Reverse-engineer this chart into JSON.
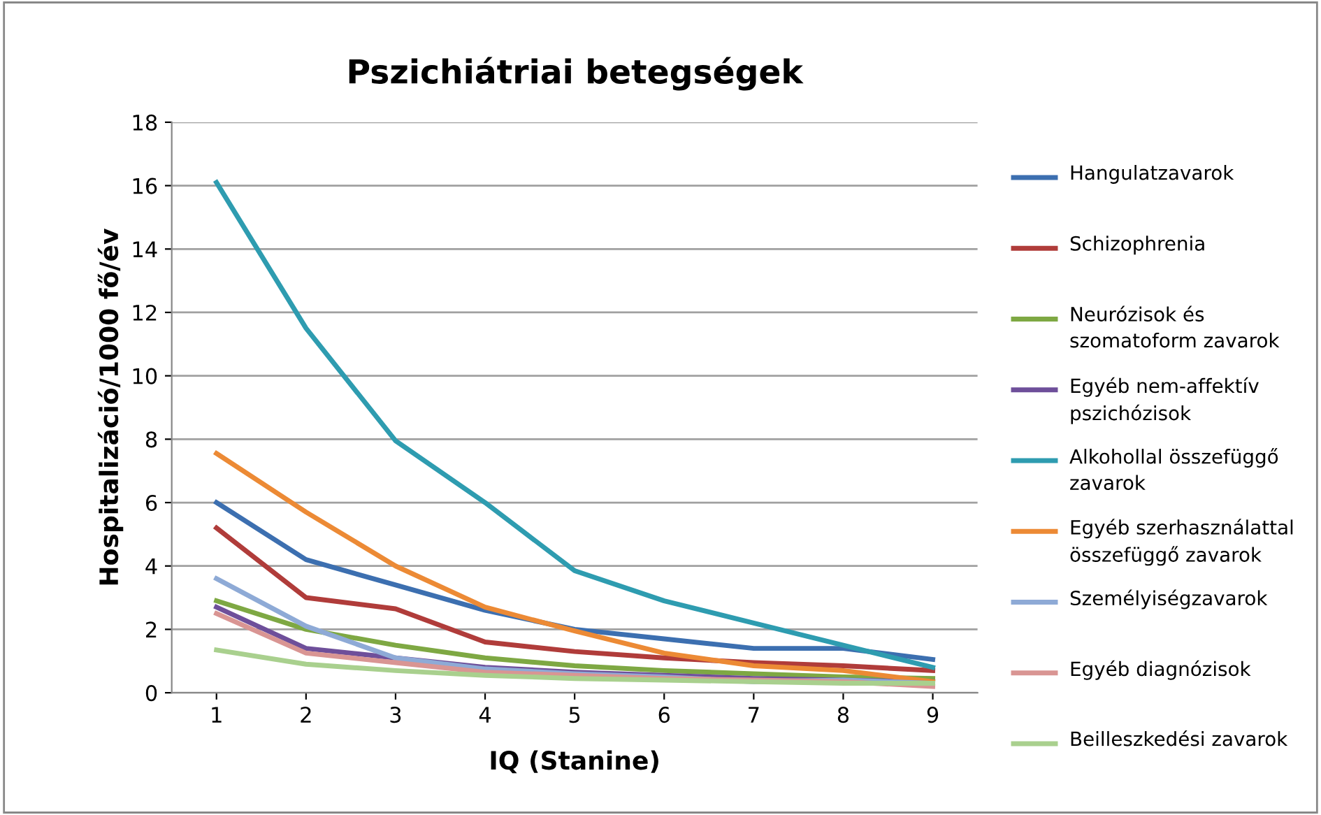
{
  "chart_data": {
    "type": "line",
    "title": "Pszichiátriai betegségek",
    "xlabel": "IQ (Stanine)",
    "ylabel": "Hospitalizáció/1000 fő/év",
    "categories": [
      "1",
      "2",
      "3",
      "4",
      "5",
      "6",
      "7",
      "8",
      "9"
    ],
    "ylim": [
      0,
      18
    ],
    "yticks": [
      0,
      2,
      4,
      6,
      8,
      10,
      12,
      14,
      16,
      18
    ],
    "grid": "y",
    "legend": "right",
    "marker": "none",
    "line_style": "solid",
    "series": [
      {
        "name": "Hangulatzavarok",
        "color": "#3c6fb0",
        "values": [
          6.0,
          4.2,
          3.4,
          2.6,
          2.0,
          1.7,
          1.4,
          1.4,
          1.05
        ]
      },
      {
        "name": "Schizophrenia",
        "color": "#b03c3a",
        "values": [
          5.2,
          3.0,
          2.65,
          1.6,
          1.3,
          1.1,
          0.95,
          0.85,
          0.7
        ]
      },
      {
        "name": "Neurózisok és szomatoform zavarok",
        "color": "#7ea843",
        "values": [
          2.9,
          2.0,
          1.5,
          1.1,
          0.85,
          0.7,
          0.6,
          0.5,
          0.45
        ]
      },
      {
        "name": "Egyéb nem-affektív pszichózisok",
        "color": "#6e4f9a",
        "values": [
          2.7,
          1.4,
          1.1,
          0.8,
          0.65,
          0.55,
          0.45,
          0.4,
          0.35
        ]
      },
      {
        "name": "Alkohollal összefüggő zavarok",
        "color": "#2e9cb0",
        "values": [
          16.1,
          11.5,
          7.95,
          6.0,
          3.85,
          2.9,
          2.2,
          1.5,
          0.8
        ]
      },
      {
        "name": "Egyéb szerhasználattal összefüggő zavarok",
        "color": "#ec8a35",
        "values": [
          7.55,
          5.7,
          4.0,
          2.7,
          1.95,
          1.25,
          0.85,
          0.7,
          0.35
        ]
      },
      {
        "name": "Személyiségzavarok",
        "color": "#8eaad6",
        "values": [
          3.6,
          2.1,
          1.1,
          0.75,
          0.6,
          0.5,
          0.35,
          0.4,
          0.3
        ]
      },
      {
        "name": "Egyéb diagnózisok",
        "color": "#d99593",
        "values": [
          2.5,
          1.25,
          0.95,
          0.65,
          0.55,
          0.45,
          0.4,
          0.35,
          0.2
        ]
      },
      {
        "name": "Beilleszkedési zavarok",
        "color": "#a9d08e",
        "values": [
          1.35,
          0.9,
          0.7,
          0.55,
          0.45,
          0.4,
          0.35,
          0.3,
          0.3
        ]
      }
    ]
  }
}
